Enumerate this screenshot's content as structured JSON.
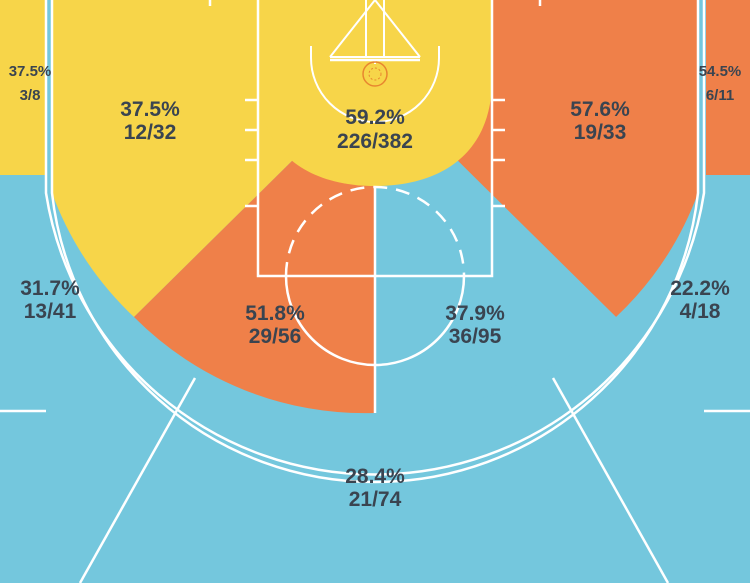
{
  "colors": {
    "hot": "#EF8049",
    "average": "#F7D549",
    "cold": "#74C7DD",
    "lines": "#FFFFFF",
    "text": "#3A4450",
    "rim": "#E8862F"
  },
  "chart_data": {
    "type": "shot-chart",
    "zones": [
      {
        "id": "left-corner-3",
        "pct": "37.5%",
        "made_att": "3/8",
        "made": 3,
        "attempts": 8,
        "temp": "average"
      },
      {
        "id": "left-mid-baseline",
        "pct": "37.5%",
        "made_att": "12/32",
        "made": 12,
        "attempts": 32,
        "temp": "average"
      },
      {
        "id": "restricted-area",
        "pct": "59.2%",
        "made_att": "226/382",
        "made": 226,
        "attempts": 382,
        "temp": "average"
      },
      {
        "id": "right-mid-baseline",
        "pct": "57.6%",
        "made_att": "19/33",
        "made": 19,
        "attempts": 33,
        "temp": "hot"
      },
      {
        "id": "right-corner-3",
        "pct": "54.5%",
        "made_att": "6/11",
        "made": 6,
        "attempts": 11,
        "temp": "hot"
      },
      {
        "id": "left-wing-3",
        "pct": "31.7%",
        "made_att": "13/41",
        "made": 13,
        "attempts": 41,
        "temp": "cold"
      },
      {
        "id": "left-elbow-mid",
        "pct": "51.8%",
        "made_att": "29/56",
        "made": 29,
        "attempts": 56,
        "temp": "hot"
      },
      {
        "id": "right-elbow-mid",
        "pct": "37.9%",
        "made_att": "36/95",
        "made": 36,
        "attempts": 95,
        "temp": "cold"
      },
      {
        "id": "right-wing-3",
        "pct": "22.2%",
        "made_att": "4/18",
        "made": 4,
        "attempts": 18,
        "temp": "cold"
      },
      {
        "id": "top-of-key-3",
        "pct": "28.4%",
        "made_att": "21/74",
        "made": 21,
        "attempts": 74,
        "temp": "cold"
      }
    ]
  }
}
